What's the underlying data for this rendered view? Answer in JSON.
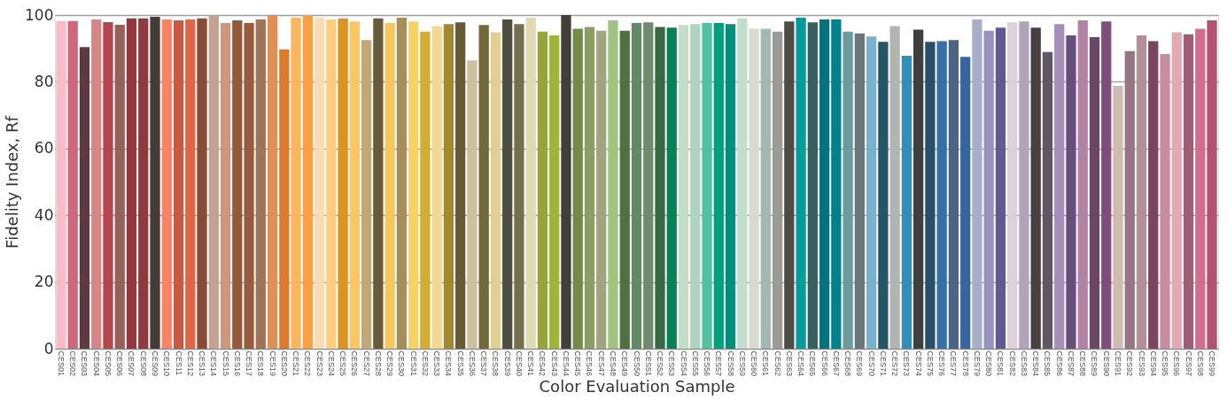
{
  "chart_data": {
    "type": "bar",
    "xlabel": "Color Evaluation Sample",
    "ylabel": "Fidelity Index, Rf",
    "categories": [
      "CES01",
      "CES02",
      "CES03",
      "CES04",
      "CES05",
      "CES06",
      "CES07",
      "CES08",
      "CES09",
      "CES10",
      "CES11",
      "CES12",
      "CES13",
      "CES14",
      "CES15",
      "CES16",
      "CES17",
      "CES18",
      "CES19",
      "CES20",
      "CES21",
      "CES22",
      "CES23",
      "CES24",
      "CES25",
      "CES26",
      "CES27",
      "CES28",
      "CES29",
      "CES30",
      "CES31",
      "CES32",
      "CES33",
      "CES34",
      "CES35",
      "CES36",
      "CES37",
      "CES38",
      "CES39",
      "CES40",
      "CES41",
      "CES42",
      "CES43",
      "CES44",
      "CES45",
      "CES46",
      "CES47",
      "CES48",
      "CES49",
      "CES50",
      "CES51",
      "CES52",
      "CES53",
      "CES54",
      "CES55",
      "CES56",
      "CES57",
      "CES58",
      "CES59",
      "CES60",
      "CES61",
      "CES62",
      "CES63",
      "CES64",
      "CES65",
      "CES66",
      "CES67",
      "CES68",
      "CES69",
      "CES70",
      "CES71",
      "CES72",
      "CES73",
      "CES74",
      "CES75",
      "CES76",
      "CES77",
      "CES78",
      "CES79",
      "CES80",
      "CES81",
      "CES82",
      "CES83",
      "CES84",
      "CES85",
      "CES86",
      "CES87",
      "CES88",
      "CES89",
      "CES90",
      "CES91",
      "CES92",
      "CES93",
      "CES94",
      "CES95",
      "CES96",
      "CES97",
      "CES98",
      "CES99"
    ],
    "values": [
      98.2,
      98.2,
      90.4,
      98.7,
      97.9,
      97.1,
      99.0,
      99.0,
      99.5,
      98.7,
      98.4,
      98.7,
      99.0,
      100,
      97.6,
      98.4,
      97.6,
      98.7,
      100,
      89.7,
      99.2,
      100,
      99.2,
      98.7,
      99.0,
      98.1,
      92.5,
      99.0,
      97.6,
      99.2,
      98.1,
      95.0,
      96.7,
      97.3,
      97.8,
      86.4,
      97.0,
      94.8,
      98.7,
      97.3,
      99.2,
      95.0,
      93.9,
      100,
      95.9,
      96.4,
      95.3,
      98.4,
      95.3,
      97.6,
      97.8,
      96.4,
      96.2,
      97.0,
      97.3,
      97.6,
      97.6,
      97.3,
      99.0,
      95.9,
      95.9,
      95.0,
      98.1,
      99.2,
      97.8,
      98.7,
      98.7,
      95.0,
      94.5,
      93.6,
      92.0,
      96.7,
      87.8,
      95.6,
      92.0,
      92.2,
      92.5,
      87.5,
      98.7,
      95.3,
      96.2,
      97.8,
      98.1,
      96.2,
      88.9,
      97.3,
      93.9,
      98.4,
      93.4,
      98.1,
      78.8,
      89.2,
      93.9,
      92.2,
      88.3,
      94.8,
      94.2,
      95.9,
      98.4
    ],
    "colors": [
      "#f9bcc4",
      "#d1667b",
      "#5c3a3f",
      "#d68687",
      "#b5454f",
      "#955f5a",
      "#983640",
      "#8e3a3f",
      "#453c39",
      "#fe8166",
      "#c95a42",
      "#e26547",
      "#874b36",
      "#c4a191",
      "#cf967c",
      "#935a3a",
      "#985c3c",
      "#a07258",
      "#df9056",
      "#de7a2c",
      "#fdb55e",
      "#fb9f47",
      "#fddab0",
      "#fecd7e",
      "#db9323",
      "#fdc660",
      "#c2a779",
      "#6a5b38",
      "#f6c75c",
      "#a68e5c",
      "#fad264",
      "#d2ac33",
      "#f4d792",
      "#a4882c",
      "#645b37",
      "#cfbea0",
      "#716939",
      "#e2cf93",
      "#4f4d3c",
      "#74704e",
      "#e0d9b6",
      "#97a536",
      "#9eb43c",
      "#423f3a",
      "#708c47",
      "#8b9e64",
      "#9da67d",
      "#9ec47e",
      "#4f7140",
      "#638966",
      "#6f8b6c",
      "#386844",
      "#028357",
      "#c3dec7",
      "#afd3c0",
      "#53c0a0",
      "#009f7d",
      "#008f7a",
      "#c2ddcd",
      "#d9dace",
      "#a1bab1",
      "#9a9c95",
      "#4e4c49",
      "#009b9a",
      "#385f5f",
      "#007380",
      "#00808a",
      "#6c9a9e",
      "#6b7679",
      "#7ab2cd",
      "#255566",
      "#b2b4b2",
      "#338db5",
      "#3f3f3f",
      "#294f6b",
      "#3570a8",
      "#4b6485",
      "#37669e",
      "#a7afc8",
      "#9893bd",
      "#615a92",
      "#ddd0d6",
      "#b2a3bd",
      "#474043",
      "#615663",
      "#a68fbb",
      "#694e7d",
      "#b181a8",
      "#6b4668",
      "#7f4d7a",
      "#cfbbb2",
      "#977583",
      "#b48f9a",
      "#7b455e",
      "#c78ea0",
      "#e3a9b6",
      "#9e5e76",
      "#d66c8c",
      "#b35270"
    ],
    "ylim": [
      0,
      100
    ],
    "yticks": [
      0,
      20,
      40,
      60,
      80,
      100
    ],
    "grid": "y",
    "legend": false
  }
}
